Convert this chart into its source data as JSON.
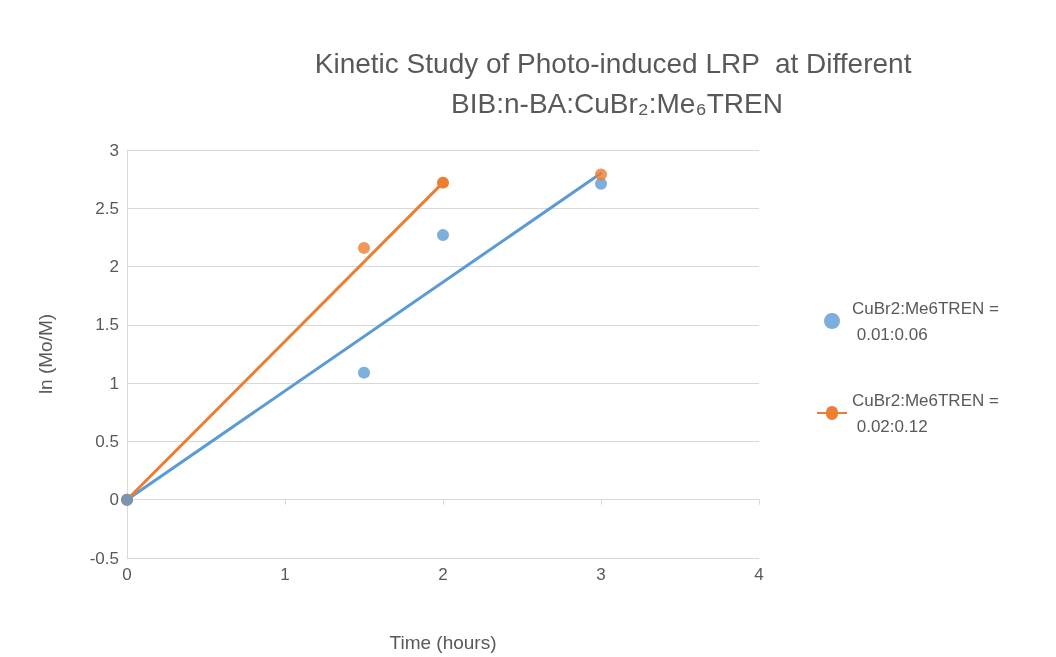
{
  "chart_data": {
    "type": "scatter",
    "title": "Kinetic Study of Photo-induced LRP  at Different BIB:n-BA:CuBr₂:Me₆TREN",
    "xlabel": "Time (hours)",
    "ylabel": "ln (Mo/M)",
    "xlim": [
      0,
      4
    ],
    "xticks": [
      0,
      1,
      2,
      3,
      4
    ],
    "ylim": [
      -0.5,
      3
    ],
    "yticks": [
      -0.5,
      0,
      0.5,
      1,
      1.5,
      2,
      2.5,
      3
    ],
    "grid": "y",
    "legend": "right",
    "marker": "circle",
    "series": [
      {
        "name": "CuBr2:Me6TREN = 0.01:0.06",
        "color": "#5b9bd5",
        "x": [
          0,
          1.5,
          2,
          3
        ],
        "values": [
          0,
          1.09,
          2.27,
          2.71
        ]
      },
      {
        "type": "line",
        "color": "#5b9bd5",
        "marker": "none",
        "x": [
          0,
          3
        ],
        "values": [
          0,
          2.8
        ]
      },
      {
        "name": "CuBr2:Me6TREN = 0.02:0.12",
        "type": "line",
        "color": "#ed7d31",
        "x": [
          0,
          2
        ],
        "values": [
          0,
          2.72
        ]
      },
      {
        "color": "#ed7d31",
        "x": [
          1.5,
          3
        ],
        "values": [
          2.16,
          2.79
        ]
      }
    ]
  }
}
